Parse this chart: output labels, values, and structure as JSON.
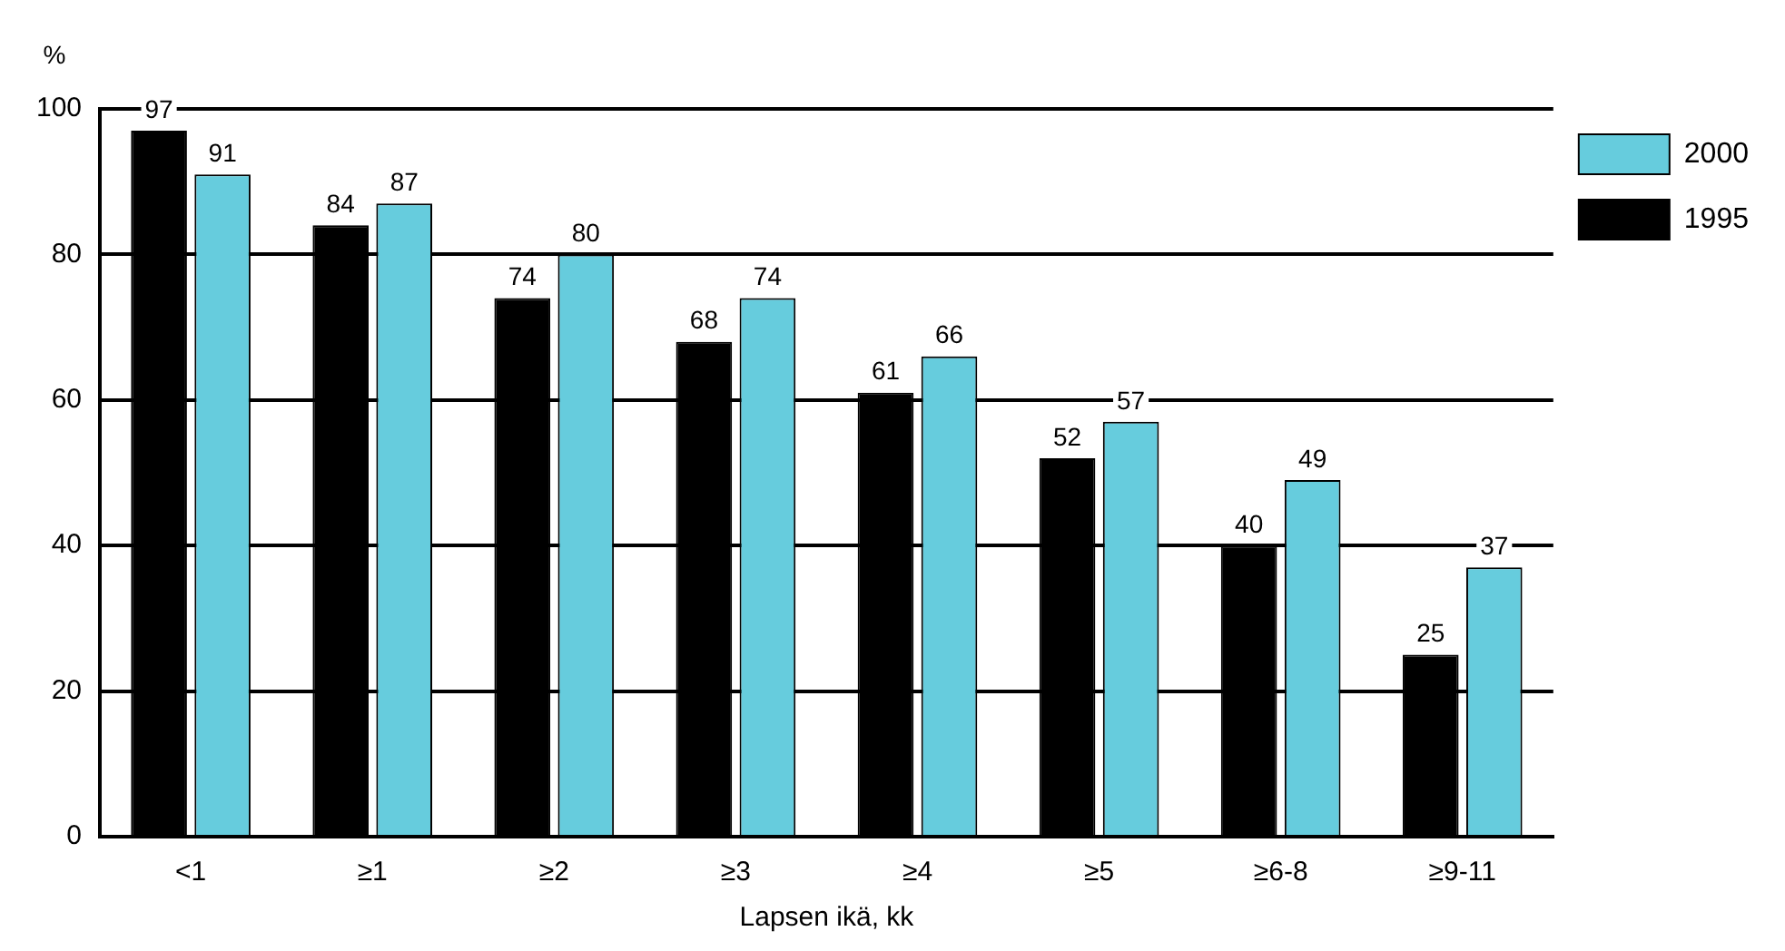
{
  "chart_data": {
    "type": "bar",
    "xlabel": "Lapsen ikä, kk",
    "ylabel": "%",
    "categories": [
      "<1",
      "≥1",
      "≥2",
      "≥3",
      "≥4",
      "≥5",
      "≥6-8",
      "≥9-11"
    ],
    "series": [
      {
        "name": "1995",
        "color": "#000000",
        "values": [
          97,
          84,
          74,
          68,
          61,
          52,
          40,
          25
        ]
      },
      {
        "name": "2000",
        "color": "#66ccdd",
        "values": [
          91,
          87,
          80,
          74,
          66,
          57,
          49,
          37
        ]
      }
    ],
    "ylim": [
      0,
      100
    ],
    "yticks": [
      0,
      20,
      40,
      60,
      80,
      100
    ],
    "grid": "y",
    "legend": "top right",
    "data_labels": true
  }
}
